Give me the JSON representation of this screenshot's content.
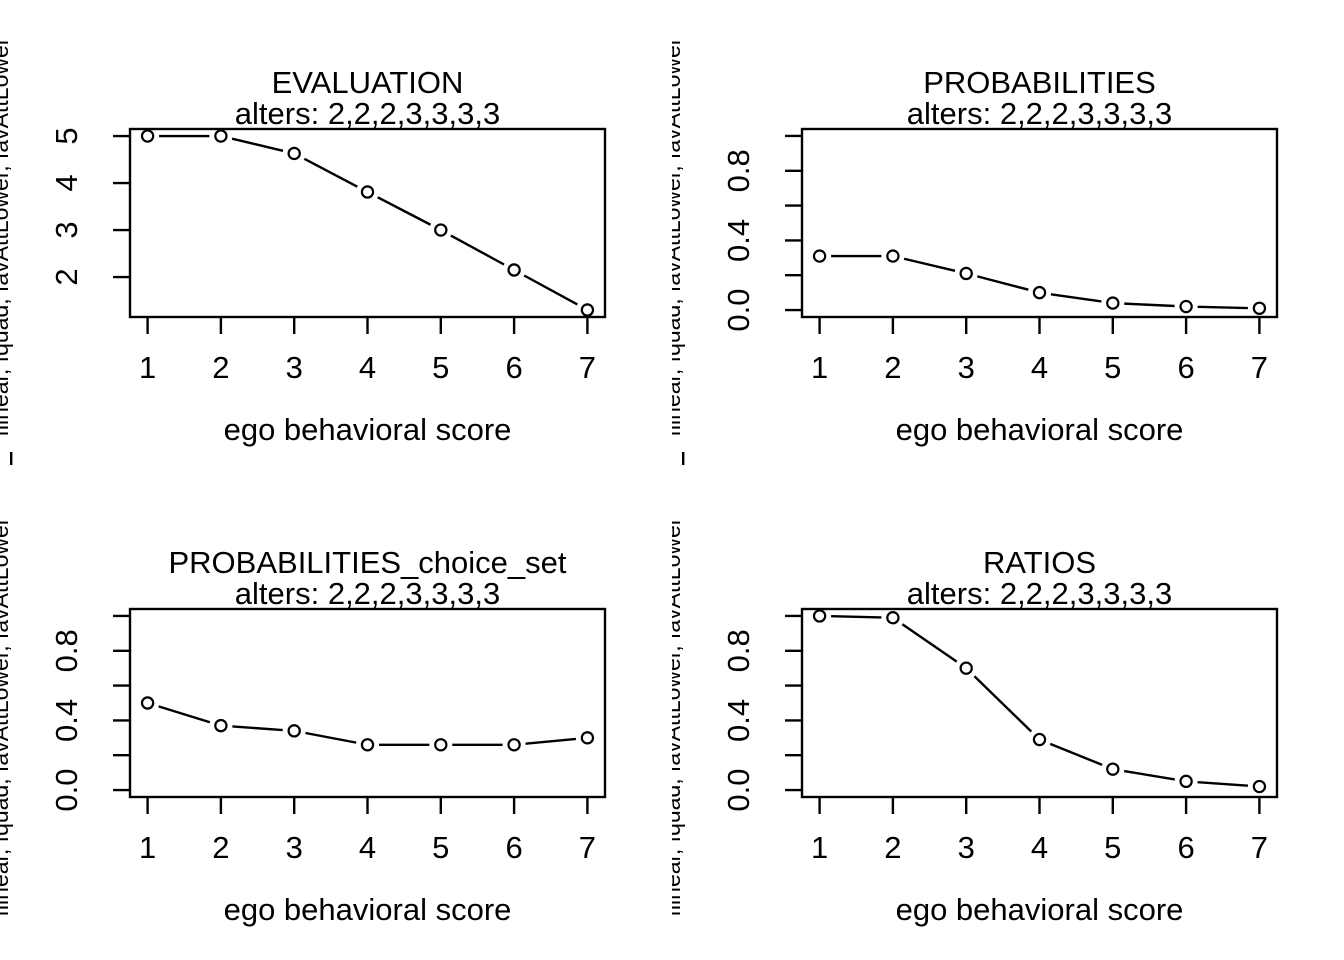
{
  "figure": {
    "background_color": "#ffffff",
    "foreground_color": "#000000",
    "layout": "2x2 grid of R base plots"
  },
  "shared": {
    "subtitle": "alters: 2,2,2,3,3,3,3",
    "xlabel": "ego behavioral score",
    "side_label_visible": "flinear, fquad, favAttLower, favAttLower",
    "x_tick_labels": [
      "1",
      "2",
      "3",
      "4",
      "5",
      "6",
      "7"
    ]
  },
  "chart_data": [
    {
      "type": "line",
      "panel": "top-left",
      "title": "EVALUATION",
      "subtitle": "alters: 2,2,2,3,3,3,3",
      "xlabel": "ego behavioral score",
      "ylabel": "flinear, fquad, favAttLower, favAttLower",
      "marker": "open-circle",
      "plot_type": "points-and-lines",
      "x": [
        1,
        2,
        3,
        4,
        5,
        6,
        7
      ],
      "y": [
        5.0,
        5.0,
        4.63,
        3.81,
        3.0,
        2.15,
        1.3
      ],
      "xlim": [
        0.76,
        7.24
      ],
      "ylim": [
        1.15,
        5.15
      ],
      "xticks": [
        1,
        2,
        3,
        4,
        5,
        6,
        7
      ],
      "yticks": [
        2,
        3,
        4,
        5
      ],
      "ytick_labels": [
        "2",
        "3",
        "4",
        "5"
      ],
      "grid": false,
      "edge_mark": true
    },
    {
      "type": "line",
      "panel": "top-right",
      "title": "PROBABILITIES",
      "subtitle": "alters: 2,2,2,3,3,3,3",
      "xlabel": "ego behavioral score",
      "ylabel": "flinear, fquad, favAttLower, favAttLower",
      "marker": "open-circle",
      "plot_type": "points-and-lines",
      "x": [
        1,
        2,
        3,
        4,
        5,
        6,
        7
      ],
      "y": [
        0.31,
        0.31,
        0.21,
        0.1,
        0.04,
        0.02,
        0.01
      ],
      "xlim": [
        0.76,
        7.24
      ],
      "ylim": [
        -0.04,
        1.04
      ],
      "xticks": [
        1,
        2,
        3,
        4,
        5,
        6,
        7
      ],
      "yticks": [
        0,
        0.2,
        0.4,
        0.6,
        0.8,
        1.0
      ],
      "ytick_labels": [
        "0.0",
        "",
        "0.4",
        "",
        "0.8",
        ""
      ],
      "grid": false,
      "edge_mark": true
    },
    {
      "type": "line",
      "panel": "bottom-left",
      "title": "PROBABILITIES_choice_set",
      "subtitle": "alters: 2,2,2,3,3,3,3",
      "xlabel": "ego behavioral score",
      "ylabel": "flinear, fquad, favAttLower, favAttLower",
      "marker": "open-circle",
      "plot_type": "points-and-lines",
      "x": [
        1,
        2,
        3,
        4,
        5,
        6,
        7
      ],
      "y": [
        0.5,
        0.37,
        0.34,
        0.26,
        0.26,
        0.26,
        0.3
      ],
      "xlim": [
        0.76,
        7.24
      ],
      "ylim": [
        -0.04,
        1.04
      ],
      "xticks": [
        1,
        2,
        3,
        4,
        5,
        6,
        7
      ],
      "yticks": [
        0,
        0.2,
        0.4,
        0.6,
        0.8,
        1.0
      ],
      "ytick_labels": [
        "0.0",
        "",
        "0.4",
        "",
        "0.8",
        ""
      ],
      "grid": false,
      "edge_mark": false
    },
    {
      "type": "line",
      "panel": "bottom-right",
      "title": "RATIOS",
      "subtitle": "alters: 2,2,2,3,3,3,3",
      "xlabel": "ego behavioral score",
      "ylabel": "flinear, fquad, favAttLower, favAttLower",
      "marker": "open-circle",
      "plot_type": "points-and-lines",
      "x": [
        1,
        2,
        3,
        4,
        5,
        6,
        7
      ],
      "y": [
        1.0,
        0.99,
        0.7,
        0.29,
        0.12,
        0.05,
        0.02
      ],
      "xlim": [
        0.76,
        7.24
      ],
      "ylim": [
        -0.04,
        1.04
      ],
      "xticks": [
        1,
        2,
        3,
        4,
        5,
        6,
        7
      ],
      "yticks": [
        0,
        0.2,
        0.4,
        0.6,
        0.8,
        1.0
      ],
      "ytick_labels": [
        "0.0",
        "",
        "0.4",
        "",
        "0.8",
        ""
      ],
      "grid": false,
      "edge_mark": false
    }
  ]
}
